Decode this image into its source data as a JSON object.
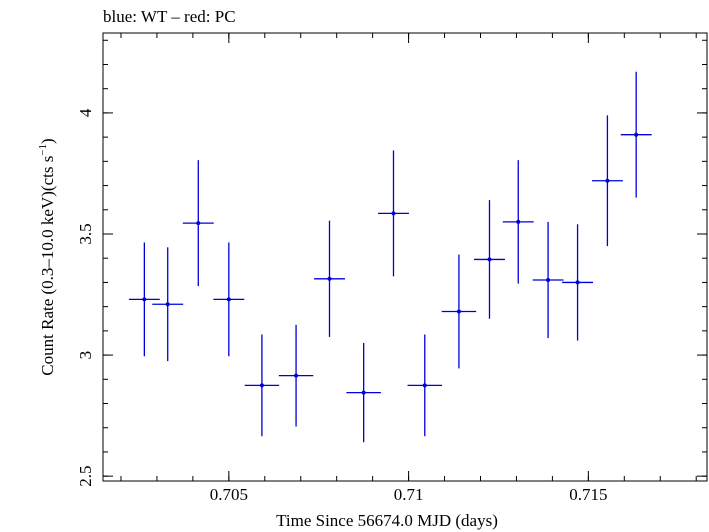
{
  "chart_data": {
    "type": "scatter",
    "title": "blue: WT – red: PC",
    "xlabel": "Time Since 56674.0 MJD (days)",
    "ylabel": "Count Rate (0.3–10.0 keV)(cts s",
    "ylabel_sup": "−1",
    "ylabel_tail": ")",
    "xlim": [
      0.7015,
      0.7183
    ],
    "ylim": [
      2.48,
      4.33
    ],
    "x_ticks": [
      {
        "value": 0.705,
        "label": "0.705"
      },
      {
        "value": 0.71,
        "label": "0.71"
      },
      {
        "value": 0.715,
        "label": "0.715"
      }
    ],
    "x_minor_step": 0.001,
    "y_ticks": [
      {
        "value": 2.5,
        "label": "2.5"
      },
      {
        "value": 3,
        "label": "3"
      },
      {
        "value": 3.5,
        "label": "3.5"
      },
      {
        "value": 4,
        "label": "4"
      }
    ],
    "y_minor_step": 0.1,
    "series": [
      {
        "color": "#0000dd",
        "points": [
          {
            "x": 0.70265,
            "xerr": 0.00043,
            "y": 3.23,
            "yerr": 0.235
          },
          {
            "x": 0.7033,
            "xerr": 0.00043,
            "y": 3.21,
            "yerr": 0.235
          },
          {
            "x": 0.70415,
            "xerr": 0.00043,
            "y": 3.545,
            "yerr": 0.26
          },
          {
            "x": 0.705,
            "xerr": 0.00043,
            "y": 3.23,
            "yerr": 0.235
          },
          {
            "x": 0.70592,
            "xerr": 0.00048,
            "y": 2.875,
            "yerr": 0.21
          },
          {
            "x": 0.70687,
            "xerr": 0.00048,
            "y": 2.915,
            "yerr": 0.21
          },
          {
            "x": 0.7078,
            "xerr": 0.00043,
            "y": 3.315,
            "yerr": 0.24
          },
          {
            "x": 0.70875,
            "xerr": 0.00048,
            "y": 2.845,
            "yerr": 0.205
          },
          {
            "x": 0.70958,
            "xerr": 0.00043,
            "y": 3.585,
            "yerr": 0.26
          },
          {
            "x": 0.71045,
            "xerr": 0.00048,
            "y": 2.875,
            "yerr": 0.21
          },
          {
            "x": 0.7114,
            "xerr": 0.00048,
            "y": 3.18,
            "yerr": 0.235
          },
          {
            "x": 0.71225,
            "xerr": 0.00043,
            "y": 3.395,
            "yerr": 0.245
          },
          {
            "x": 0.71305,
            "xerr": 0.00043,
            "y": 3.55,
            "yerr": 0.255
          },
          {
            "x": 0.71388,
            "xerr": 0.00043,
            "y": 3.31,
            "yerr": 0.24
          },
          {
            "x": 0.7147,
            "xerr": 0.00043,
            "y": 3.3,
            "yerr": 0.24
          },
          {
            "x": 0.71553,
            "xerr": 0.00043,
            "y": 3.72,
            "yerr": 0.27
          },
          {
            "x": 0.71633,
            "xerr": 0.00043,
            "y": 3.91,
            "yerr": 0.26
          }
        ]
      }
    ],
    "grid": false,
    "legend": "none"
  }
}
